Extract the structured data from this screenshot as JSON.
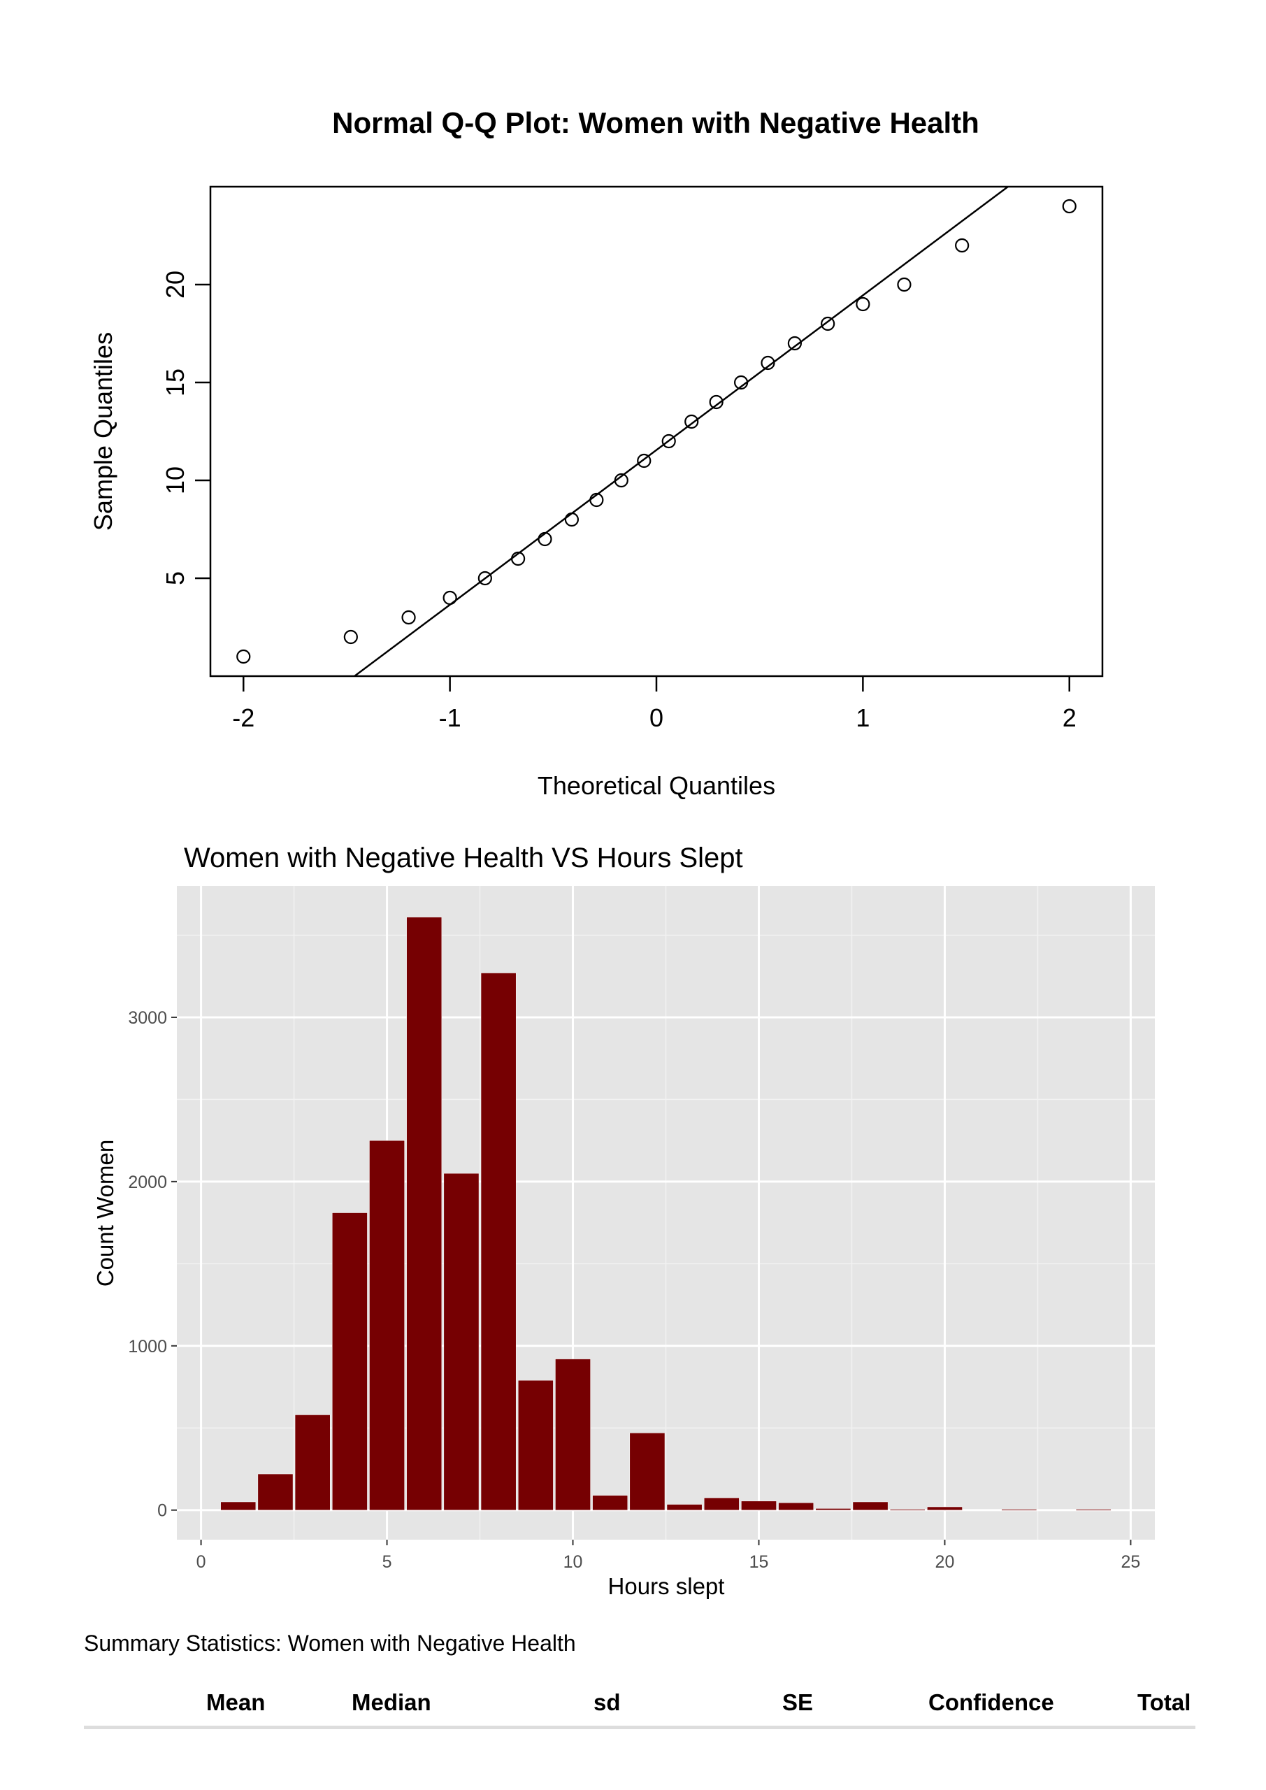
{
  "chart_data": [
    {
      "type": "scatter",
      "title": "Normal Q-Q Plot: Women with Negative Health",
      "xlabel": "Theoretical Quantiles",
      "ylabel": "Sample Quantiles",
      "xlim": [
        -2.16,
        2.16
      ],
      "ylim": [
        0,
        25
      ],
      "x_ticks": [
        "-2",
        "-1",
        "0",
        "1",
        "2"
      ],
      "y_ticks": [
        "5",
        "10",
        "15",
        "20"
      ],
      "points": {
        "x": [
          -2.0,
          -1.48,
          -1.2,
          -1.0,
          -0.83,
          -0.67,
          -0.54,
          -0.41,
          -0.29,
          -0.17,
          -0.06,
          0.06,
          0.17,
          0.29,
          0.41,
          0.54,
          0.67,
          0.83,
          1.0,
          1.2,
          1.48,
          2.0
        ],
        "y": [
          1,
          2,
          3,
          4,
          5,
          6,
          7,
          8,
          9,
          10,
          11,
          12,
          13,
          14,
          15,
          16,
          17,
          18,
          19,
          20,
          22,
          24
        ]
      },
      "reference_line": {
        "intercept": 11.55,
        "slope": 7.9
      }
    },
    {
      "type": "bar",
      "title": "Women with Negative Health VS Hours Slept",
      "xlabel": "Hours slept",
      "ylabel": "Count Women",
      "xlim": [
        -0.65,
        25.65
      ],
      "ylim": [
        -180,
        3800
      ],
      "x_ticks": [
        "0",
        "5",
        "10",
        "15",
        "20",
        "25"
      ],
      "y_ticks": [
        "0",
        "1000",
        "2000",
        "3000"
      ],
      "bar_color": "#760002",
      "panel_color": "#e5e5e5",
      "categories": [
        1,
        2,
        3,
        4,
        5,
        6,
        7,
        8,
        9,
        10,
        11,
        12,
        13,
        14,
        15,
        16,
        17,
        18,
        19,
        20,
        21,
        22,
        23,
        24
      ],
      "values": [
        50,
        220,
        580,
        1810,
        2250,
        3610,
        2050,
        3270,
        790,
        920,
        90,
        470,
        35,
        75,
        55,
        45,
        10,
        50,
        5,
        20,
        0,
        5,
        0,
        5
      ]
    }
  ],
  "summary": {
    "title": "Summary Statistics: Women with Negative Health",
    "columns": [
      "Mean",
      "Median",
      "sd",
      "SE",
      "Confidence",
      "Total"
    ]
  }
}
